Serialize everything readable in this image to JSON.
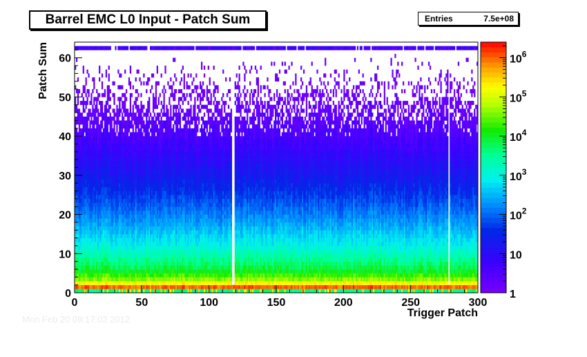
{
  "title": "Barrel EMC L0 Input - Patch Sum",
  "stats": {
    "label": "Entries",
    "value": "7.5e+08"
  },
  "footer_text": "Mon Feb 20 09:17:02 2012",
  "chart_data": {
    "type": "heatmap",
    "title": "Barrel EMC L0 Input - Patch Sum",
    "xlabel": "Trigger Patch",
    "ylabel": "Patch Sum",
    "xlim": [
      0,
      300
    ],
    "ylim": [
      0,
      64
    ],
    "x_ticks": [
      0,
      50,
      100,
      150,
      200,
      250,
      300
    ],
    "y_ticks": [
      0,
      10,
      20,
      30,
      40,
      50,
      60
    ],
    "z_scale": "log",
    "zlim": [
      1,
      2500000
    ],
    "z_ticks": [
      {
        "value": 1,
        "base": "1",
        "exp": ""
      },
      {
        "value": 10,
        "base": "10",
        "exp": ""
      },
      {
        "value": 100,
        "base": "10",
        "exp": "2"
      },
      {
        "value": 1000,
        "base": "10",
        "exp": "3"
      },
      {
        "value": 10000,
        "base": "10",
        "exp": "4"
      },
      {
        "value": 100000,
        "base": "10",
        "exp": "5"
      },
      {
        "value": 1000000,
        "base": "10",
        "exp": "6"
      }
    ],
    "x_bins": 300,
    "y_bins": 64,
    "entries": "7.5e+08",
    "profile_log10_counts": [
      {
        "patch_sum": 0,
        "log10": 3.6
      },
      {
        "patch_sum": 1,
        "log10": 6.0
      },
      {
        "patch_sum": 2,
        "log10": 5.2
      },
      {
        "patch_sum": 3,
        "log10": 4.6
      },
      {
        "patch_sum": 5,
        "log10": 4.0
      },
      {
        "patch_sum": 8,
        "log10": 3.5
      },
      {
        "patch_sum": 12,
        "log10": 2.9
      },
      {
        "patch_sum": 16,
        "log10": 2.5
      },
      {
        "patch_sum": 20,
        "log10": 2.1
      },
      {
        "patch_sum": 25,
        "log10": 1.65
      },
      {
        "patch_sum": 30,
        "log10": 1.25
      },
      {
        "patch_sum": 35,
        "log10": 0.9
      },
      {
        "patch_sum": 40,
        "log10": 0.55
      },
      {
        "patch_sum": 45,
        "log10": 0.3
      },
      {
        "patch_sum": 50,
        "log10": 0.12
      },
      {
        "patch_sum": 55,
        "log10": 0.02
      },
      {
        "patch_sum": 60,
        "log10": 0.0
      },
      {
        "patch_sum": 62,
        "log10": 0.05
      }
    ],
    "overflow_row": 62,
    "dead_patches": [
      117,
      118,
      278
    ]
  }
}
